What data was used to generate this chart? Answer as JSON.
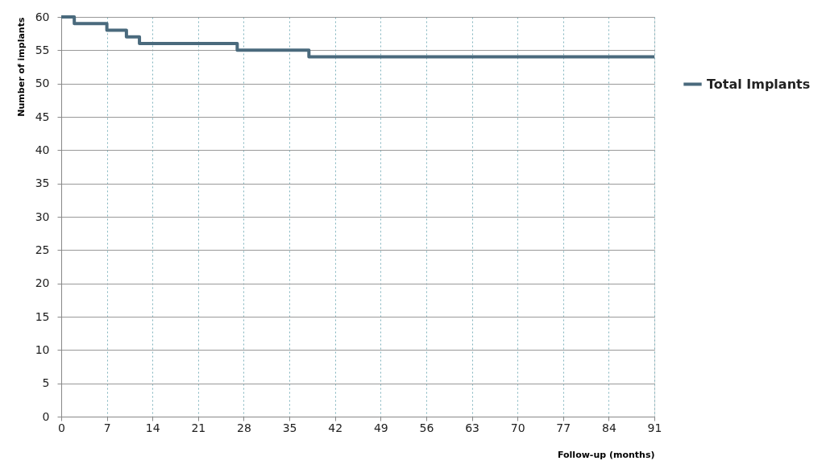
{
  "chart_data": {
    "type": "step",
    "xlabel": "Follow-up (months)",
    "ylabel": "Number of implants",
    "series": [
      {
        "name": "Total Implants",
        "color": "#4a6a7d",
        "x": [
          0,
          2,
          7,
          10,
          12,
          27,
          38,
          91
        ],
        "values": [
          60,
          59,
          58,
          57,
          56,
          55,
          54,
          54
        ]
      }
    ],
    "xlim": [
      0,
      91
    ],
    "xticks": [
      0,
      7,
      14,
      21,
      28,
      35,
      42,
      49,
      56,
      63,
      70,
      77,
      84,
      91
    ],
    "ylim": [
      0,
      60
    ],
    "yticks": [
      0,
      5,
      10,
      15,
      20,
      25,
      30,
      35,
      40,
      45,
      50,
      55,
      60
    ],
    "grid": true,
    "legend": "right",
    "marker": "none",
    "line_style": "solid"
  }
}
